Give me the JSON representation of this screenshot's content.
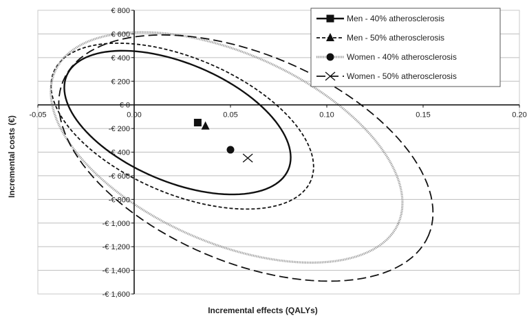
{
  "chart_data": {
    "type": "scatter",
    "xlabel": "Incremental effects (QALYs)",
    "ylabel": "Incremental costs (€)",
    "xlim": [
      -0.05,
      0.2
    ],
    "ylim": [
      -1600,
      800
    ],
    "x_ticks": [
      -0.05,
      0.0,
      0.05,
      0.1,
      0.15,
      0.2
    ],
    "x_tick_labels": [
      "-0.05",
      "0.00",
      "0.05",
      "0.10",
      "0.15",
      "0.20"
    ],
    "y_ticks": [
      800,
      600,
      400,
      200,
      0,
      -200,
      -400,
      -600,
      -800,
      -1000,
      -1200,
      -1400,
      -1600
    ],
    "y_tick_labels": [
      "€ 800",
      "€ 600",
      "€ 400",
      "€ 200",
      "€ 0",
      "-€ 200",
      "-€ 400",
      "-€ 600",
      "-€ 800",
      "-€ 1,000",
      "-€ 1,200",
      "-€ 1,400",
      "-€ 1,600"
    ],
    "grid": "horizontal",
    "legend_position": "top-right",
    "series": [
      {
        "name": "Men - 40% atherosclerosis",
        "marker": "square",
        "line": "solid",
        "point": {
          "x": 0.033,
          "y": -150
        },
        "ellipse": {
          "cx": 0.0225,
          "cy": -150,
          "rx": 0.0625,
          "ry": 500,
          "rotation_deg": 23
        }
      },
      {
        "name": "Men - 50% atherosclerosis",
        "marker": "triangle",
        "line": "short-dash",
        "point": {
          "x": 0.037,
          "y": -180
        },
        "ellipse": {
          "cx": 0.025,
          "cy": -180,
          "rx": 0.0725,
          "ry": 575,
          "rotation_deg": 23
        }
      },
      {
        "name": "Women - 40% atherosclerosis",
        "marker": "circle",
        "line": "grey-dotted",
        "point": {
          "x": 0.05,
          "y": -380
        },
        "ellipse": {
          "cx": 0.048,
          "cy": -360,
          "rx": 0.0975,
          "ry": 800,
          "rotation_deg": 24
        }
      },
      {
        "name": "Women - 50% atherosclerosis",
        "marker": "x",
        "line": "long-dash",
        "point": {
          "x": 0.059,
          "y": -450
        },
        "ellipse": {
          "cx": 0.058,
          "cy": -450,
          "rx": 0.103,
          "ry": 880,
          "rotation_deg": 23
        }
      }
    ]
  },
  "colors": {
    "ink": "#111111",
    "grid": "#bdbdbd",
    "grey_dotted": "#9a9a9a"
  }
}
